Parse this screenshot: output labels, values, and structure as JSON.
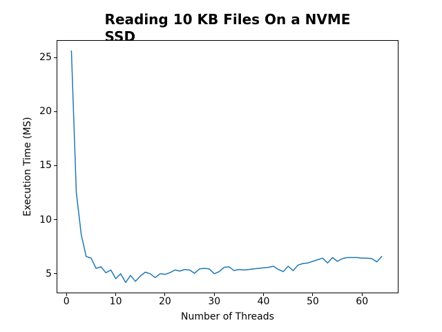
{
  "figure": {
    "background": "#ffffff"
  },
  "title": {
    "line1": "Reading 10 KB Files On a NVME",
    "line2": "SSD"
  },
  "chart_data": {
    "type": "line",
    "title": "Reading 10 KB Files On a NVME\nSSD",
    "xlabel": "Number of Threads",
    "ylabel": "Execution Time (MS)",
    "x": [
      1,
      2,
      3,
      4,
      5,
      6,
      7,
      8,
      9,
      10,
      11,
      12,
      13,
      14,
      15,
      16,
      17,
      18,
      19,
      20,
      21,
      22,
      23,
      24,
      25,
      26,
      27,
      28,
      29,
      30,
      31,
      32,
      33,
      34,
      35,
      36,
      37,
      38,
      39,
      40,
      41,
      42,
      43,
      44,
      45,
      46,
      47,
      48,
      49,
      50,
      51,
      52,
      53,
      54,
      55,
      56,
      57,
      58,
      59,
      60,
      61,
      62,
      63,
      64
    ],
    "y": [
      25.6,
      12.5,
      8.6,
      6.6,
      6.45,
      5.5,
      5.65,
      5.1,
      5.35,
      4.55,
      5.0,
      4.2,
      4.85,
      4.3,
      4.8,
      5.15,
      5.0,
      4.65,
      5.0,
      4.95,
      5.1,
      5.35,
      5.25,
      5.4,
      5.35,
      5.05,
      5.45,
      5.5,
      5.45,
      5.0,
      5.2,
      5.6,
      5.65,
      5.3,
      5.4,
      5.35,
      5.4,
      5.45,
      5.5,
      5.55,
      5.6,
      5.7,
      5.4,
      5.2,
      5.7,
      5.3,
      5.8,
      5.95,
      6.0,
      6.15,
      6.3,
      6.45,
      6.0,
      6.5,
      6.15,
      6.4,
      6.5,
      6.5,
      6.5,
      6.45,
      6.45,
      6.4,
      6.1,
      6.6
    ],
    "xlim": [
      -2.0,
      67.4
    ],
    "ylim": [
      3.2,
      26.6
    ],
    "xticks": [
      0,
      10,
      20,
      30,
      40,
      50,
      60
    ],
    "yticks": [
      5,
      10,
      15,
      20,
      25
    ],
    "grid": false,
    "legend": "none",
    "line_color": "#1f77b4",
    "text_color": "#000000"
  }
}
